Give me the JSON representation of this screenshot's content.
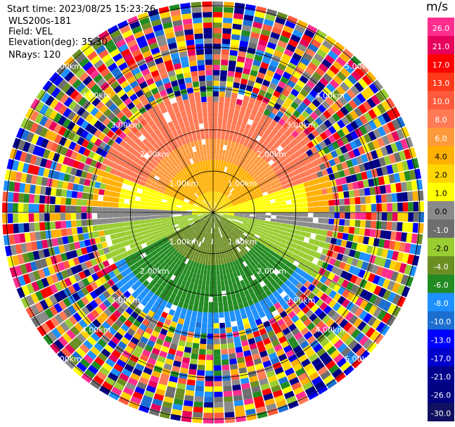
{
  "info": {
    "start_time": "Start time: 2023/08/25 15:23:26",
    "instrument": "WLS200s-181",
    "field": "Field: VEL",
    "elevation": "Elevation(deg): 35.30",
    "nrays": "NRays: 120"
  },
  "chart_data": {
    "type": "heatmap",
    "projection": "polar",
    "field": "VEL",
    "units": "m/s",
    "n_rays": 120,
    "range_ring_labels": [
      "1.00km",
      "2.00km",
      "3.00km",
      "4.00km",
      "5.00km"
    ],
    "colorbar": {
      "unit": "m/s",
      "ticks": [
        "26.0",
        "21.0",
        "17.0",
        "13.0",
        "10.0",
        "8.0",
        "6.0",
        "4.0",
        "2.0",
        "1.0",
        "0.0",
        "-1.0",
        "-2.0",
        "-4.0",
        "-6.0",
        "-8.0",
        "-10.0",
        "-13.0",
        "-17.0",
        "-21.0",
        "-26.0",
        "-30.0"
      ],
      "colors": [
        "#ff2d8e",
        "#e6005c",
        "#ff0000",
        "#ff3a1a",
        "#ff5a3c",
        "#ff7a55",
        "#ff9a3c",
        "#ffb000",
        "#ffd500",
        "#ffff00",
        "#8a8a8a",
        "#6e6e6e",
        "#9acd32",
        "#6b8e23",
        "#228b22",
        "#1e90ff",
        "#1c6fd0",
        "#0000ff",
        "#0000cd",
        "#00008b",
        "#000080",
        "#101060"
      ]
    },
    "ring_labels": [
      {
        "text": "1.00km"
      },
      {
        "text": "1.00km"
      },
      {
        "text": "1.00km"
      },
      {
        "text": "1.00km"
      },
      {
        "text": "2.00km"
      },
      {
        "text": "2.00km"
      },
      {
        "text": "2.00km"
      },
      {
        "text": "2.00km"
      },
      {
        "text": "3.00km"
      },
      {
        "text": "3.00km"
      },
      {
        "text": "3.00km"
      },
      {
        "text": "3.00km"
      },
      {
        "text": "4.00km"
      },
      {
        "text": "4.00km"
      },
      {
        "text": "4.00km"
      },
      {
        "text": "4.00km"
      },
      {
        "text": "5.00km"
      },
      {
        "text": "5.00km"
      },
      {
        "text": "5.00km"
      },
      {
        "text": "5.00km"
      }
    ]
  }
}
